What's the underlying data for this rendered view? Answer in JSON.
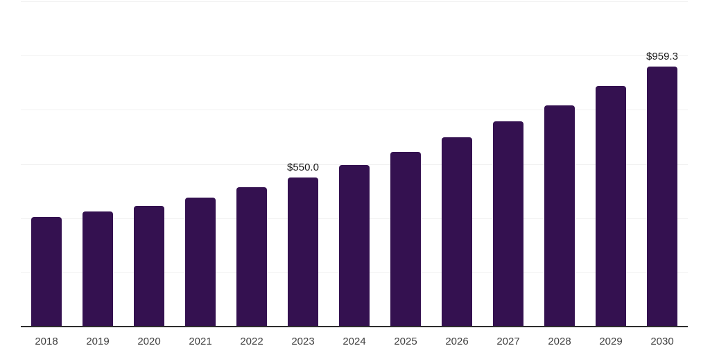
{
  "chart_data": {
    "type": "bar",
    "title": "",
    "xlabel": "",
    "ylabel": "",
    "categories": [
      "2018",
      "2019",
      "2020",
      "2021",
      "2022",
      "2023",
      "2024",
      "2025",
      "2026",
      "2027",
      "2028",
      "2029",
      "2030"
    ],
    "values": [
      404,
      426,
      446,
      476,
      514,
      550.0,
      596,
      646,
      699,
      757,
      817,
      888,
      959.3
    ],
    "point_labels": [
      null,
      null,
      null,
      null,
      null,
      "$550.0",
      null,
      null,
      null,
      null,
      null,
      null,
      "$959.3"
    ],
    "ylim": [
      0,
      1200
    ],
    "gridline_values": [
      200,
      400,
      600,
      800,
      1000,
      1200
    ],
    "grid": true,
    "legend": false,
    "bar_color": "#341150",
    "axis_line_color": "#2d2d2d",
    "gridline_color": "#f0f0f0",
    "x_tick_color": "#3f3f3f",
    "data_label_color": "#191919"
  }
}
